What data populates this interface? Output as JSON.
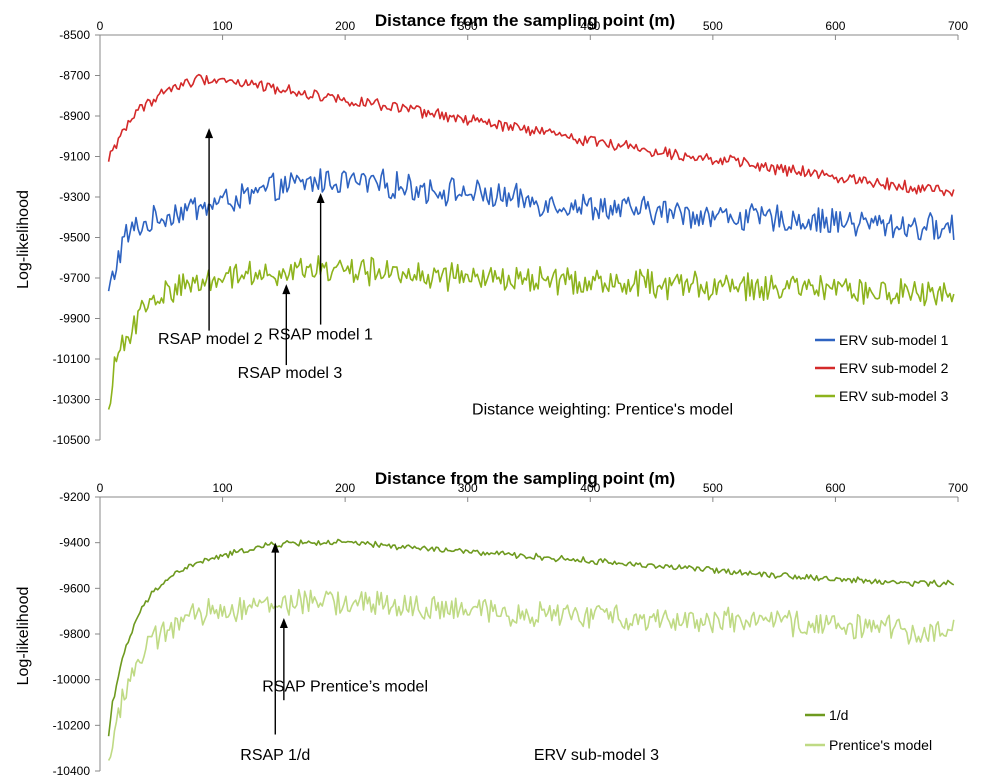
{
  "chart_data": [
    {
      "type": "line",
      "title": "Distance from  the  sampling point (m)",
      "xlabel": "",
      "ylabel": "Log-likelihood",
      "xlim": [
        0,
        700
      ],
      "ylim": [
        -10500,
        -8500
      ],
      "xticks": [
        0,
        100,
        200,
        300,
        400,
        500,
        600,
        700
      ],
      "xtick_labels": [
        "0",
        "100",
        "200",
        "300",
        "400",
        "500",
        "600",
        "700"
      ],
      "yticks": [
        -8500,
        -8700,
        -8900,
        -9100,
        -9300,
        -9500,
        -9700,
        -9900,
        -10100,
        -10300,
        -10500
      ],
      "ytick_labels": [
        "-8500",
        "-8700",
        "-8900",
        "-9100",
        "-9300",
        "-9500",
        "-9700",
        "-9900",
        "-10100",
        "-10300",
        "-10500"
      ],
      "x_axis_position": "top",
      "grid": false,
      "legend_position": "bottom-right",
      "series": [
        {
          "name": "ERV sub-model 1",
          "color": "#2e63c1",
          "x": [
            7,
            10,
            20,
            30,
            40,
            50,
            60,
            70,
            80,
            90,
            100,
            120,
            140,
            160,
            180,
            200,
            250,
            300,
            350,
            400,
            450,
            500,
            550,
            600,
            650,
            700
          ],
          "y": [
            -9780,
            -9700,
            -9500,
            -9450,
            -9430,
            -9400,
            -9380,
            -9360,
            -9350,
            -9340,
            -9320,
            -9300,
            -9260,
            -9240,
            -9220,
            -9220,
            -9250,
            -9280,
            -9320,
            -9350,
            -9370,
            -9390,
            -9410,
            -9420,
            -9440,
            -9460
          ]
        },
        {
          "name": "ERV sub-model 2",
          "color": "#d42a2a",
          "x": [
            7,
            10,
            20,
            30,
            40,
            50,
            60,
            70,
            80,
            90,
            100,
            120,
            140,
            160,
            180,
            200,
            250,
            300,
            350,
            400,
            450,
            500,
            550,
            600,
            650,
            700
          ],
          "y": [
            -9130,
            -9070,
            -8960,
            -8880,
            -8830,
            -8790,
            -8760,
            -8740,
            -8720,
            -8715,
            -8720,
            -8740,
            -8760,
            -8780,
            -8800,
            -8820,
            -8870,
            -8920,
            -8970,
            -9020,
            -9070,
            -9110,
            -9160,
            -9200,
            -9240,
            -9280
          ]
        },
        {
          "name": "ERV sub-model 3",
          "color": "#8db31c",
          "x": [
            7,
            10,
            20,
            30,
            40,
            50,
            60,
            70,
            80,
            90,
            100,
            120,
            140,
            160,
            180,
            200,
            250,
            300,
            350,
            400,
            450,
            500,
            550,
            600,
            650,
            700
          ],
          "y": [
            -10390,
            -10200,
            -10000,
            -9900,
            -9830,
            -9790,
            -9750,
            -9730,
            -9720,
            -9700,
            -9690,
            -9680,
            -9670,
            -9660,
            -9660,
            -9660,
            -9680,
            -9700,
            -9710,
            -9720,
            -9730,
            -9740,
            -9750,
            -9760,
            -9780,
            -9780
          ]
        }
      ],
      "annotations": [
        {
          "text": "RSAP model 2",
          "arrow_x": 89,
          "arrow_from": -9960,
          "arrow_to": -8960,
          "label_x": 90,
          "label_y": -10000
        },
        {
          "text": "RSAP model 1",
          "arrow_x": 180,
          "arrow_from": -9930,
          "arrow_to": -9280,
          "label_x": 180,
          "label_y": -9980
        },
        {
          "text": "RSAP model 3",
          "arrow_x": 152,
          "arrow_from": -10130,
          "arrow_to": -9730,
          "label_x": 155,
          "label_y": -10170
        }
      ],
      "note": "Distance weighting: Prentice's model",
      "note_x": 410,
      "note_y": -10350,
      "noise_amplitude": [
        60,
        25,
        60
      ]
    },
    {
      "type": "line",
      "title": "Distance from  the  sampling point (m)",
      "xlabel": "",
      "ylabel": "Log-likelihood",
      "xlim": [
        0,
        700
      ],
      "ylim": [
        -10400,
        -9200
      ],
      "xticks": [
        0,
        100,
        200,
        300,
        400,
        500,
        600,
        700
      ],
      "xtick_labels": [
        "0",
        "100",
        "200",
        "300",
        "400",
        "500",
        "600",
        "700"
      ],
      "yticks": [
        -9200,
        -9400,
        -9600,
        -9800,
        -10000,
        -10200,
        -10400
      ],
      "ytick_labels": [
        "-9200",
        "-9400",
        "-9600",
        "-9800",
        "-10000",
        "-10200",
        "-10400"
      ],
      "x_axis_position": "top",
      "grid": false,
      "legend_position": "bottom-right",
      "series": [
        {
          "name": "1/d",
          "color": "#6e9a1f",
          "x": [
            7,
            10,
            20,
            30,
            40,
            50,
            60,
            70,
            80,
            90,
            100,
            120,
            140,
            160,
            180,
            200,
            250,
            300,
            350,
            400,
            450,
            500,
            550,
            600,
            650,
            700
          ],
          "y": [
            -10250,
            -10100,
            -9880,
            -9730,
            -9640,
            -9580,
            -9540,
            -9510,
            -9490,
            -9470,
            -9460,
            -9430,
            -9410,
            -9400,
            -9400,
            -9400,
            -9420,
            -9440,
            -9460,
            -9480,
            -9500,
            -9520,
            -9540,
            -9560,
            -9575,
            -9580
          ]
        },
        {
          "name": "Prentice's model",
          "color": "#bfda84",
          "x": [
            7,
            10,
            20,
            30,
            40,
            50,
            60,
            70,
            80,
            90,
            100,
            120,
            140,
            160,
            180,
            200,
            250,
            300,
            350,
            400,
            450,
            500,
            550,
            600,
            650,
            700
          ],
          "y": [
            -10390,
            -10250,
            -10050,
            -9930,
            -9850,
            -9800,
            -9760,
            -9740,
            -9720,
            -9700,
            -9690,
            -9680,
            -9670,
            -9660,
            -9660,
            -9660,
            -9680,
            -9700,
            -9710,
            -9720,
            -9730,
            -9740,
            -9750,
            -9760,
            -9780,
            -9790
          ]
        }
      ],
      "annotations": [
        {
          "text": "RSAP 1/d",
          "arrow_x": 143,
          "arrow_from": -10240,
          "arrow_to": -9400,
          "label_x": 143,
          "label_y": -10330
        },
        {
          "text": "RSAP Prentice’s model",
          "arrow_x": 150,
          "arrow_from": -10090,
          "arrow_to": -9730,
          "label_x": 200,
          "label_y": -10030
        }
      ],
      "note": "ERV sub-model 3",
      "note_x": 405,
      "note_y": -10330,
      "noise_amplitude": [
        12,
        50
      ]
    }
  ]
}
